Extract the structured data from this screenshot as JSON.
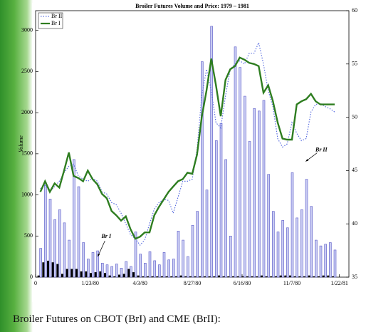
{
  "chart_data": {
    "type": "bar_line",
    "title": "Broiler Futures Volume and Price: 1979 – 1981",
    "y_label": "Volume",
    "caption": "Broiler Futures on CBOT (BrI) and CME (BrII):",
    "x": [
      1,
      2,
      3,
      4,
      5,
      6,
      7,
      8,
      9,
      10,
      11,
      12,
      13,
      14,
      15,
      16,
      17,
      18,
      19,
      20,
      21,
      22,
      23,
      24,
      25,
      26,
      27,
      28,
      29,
      30,
      31,
      32,
      33,
      34,
      35,
      36,
      37,
      38,
      39,
      40,
      41,
      42,
      43,
      44,
      45,
      46,
      47,
      48,
      49,
      50,
      51,
      52,
      53,
      54,
      55,
      56,
      57,
      58,
      59,
      60,
      61,
      62,
      63
    ],
    "xlim": [
      0,
      66
    ],
    "xticks": [
      0,
      {
        "value": 11.5,
        "label": "1/23/80"
      },
      {
        "value": 22,
        "label": "4/3/80"
      },
      {
        "value": 33,
        "label": "8/27/80"
      },
      {
        "value": 43.5,
        "label": "6/16/80"
      },
      {
        "value": 54,
        "label": "11/7/80"
      },
      {
        "value": 64,
        "label": "1/22/81"
      }
    ],
    "ylim": [
      0,
      3240
    ],
    "yticks": [
      0,
      500,
      1000,
      1500,
      2000,
      2500,
      3000
    ],
    "y2lim": [
      35,
      60
    ],
    "y2ticks": [
      35,
      40,
      45,
      50,
      55,
      60
    ],
    "legend": "upper left",
    "series": [
      {
        "kind": "bar",
        "color": "#5a5ac8",
        "values": [
          350,
          1150,
          950,
          700,
          820,
          660,
          450,
          1430,
          1100,
          420,
          220,
          300,
          320,
          170,
          150,
          130,
          160,
          110,
          190,
          130,
          550,
          280,
          170,
          310,
          200,
          150,
          300,
          210,
          220,
          560,
          450,
          250,
          630,
          800,
          2620,
          1060,
          3050,
          1660,
          1870,
          1430,
          500,
          2800,
          2550,
          2200,
          1650,
          2050,
          2020,
          2150,
          1250,
          800,
          550,
          690,
          600,
          1270,
          720,
          820,
          1190,
          860,
          450,
          380,
          400,
          420,
          330
        ]
      },
      {
        "kind": "bar",
        "color": "#000000",
        "values": [
          20,
          180,
          200,
          180,
          160,
          40,
          100,
          100,
          100,
          70,
          70,
          50,
          60,
          70,
          50,
          20,
          10,
          30,
          40,
          100,
          60,
          20,
          10,
          10,
          10,
          10,
          10,
          10,
          10,
          10,
          20,
          10,
          10,
          10,
          10,
          10,
          10,
          10,
          20,
          10,
          10,
          10,
          10,
          10,
          10,
          10,
          10,
          20,
          10,
          10,
          10,
          20,
          20,
          20,
          10,
          10,
          10,
          20,
          10,
          10,
          20,
          20,
          10
        ]
      },
      {
        "kind": "line",
        "name": "Br II",
        "axis": "y2",
        "color": "#5a6ee0",
        "dash": true,
        "values": [
          43.3,
          43.6,
          43.0,
          43.5,
          44.0,
          44.8,
          45.4,
          45.6,
          44.5,
          44.2,
          44.0,
          44.3,
          44.0,
          43.0,
          42.8,
          42.0,
          41.8,
          41.0,
          40.0,
          39.0,
          38.6,
          38.0,
          38.5,
          40.0,
          41.4,
          42.0,
          42.3,
          42.2,
          41.0,
          42.5,
          44.0,
          44.0,
          44.2,
          47.0,
          52.0,
          54.5,
          52.5,
          49.5,
          49.0,
          52.0,
          54.5,
          55.0,
          55.3,
          55.0,
          56.0,
          56.0,
          57.0,
          55.0,
          52.5,
          51.0,
          48.0,
          47.2,
          47.5,
          49.5,
          48.5,
          47.8,
          48.0,
          50.5,
          51.2,
          51.3,
          51.0,
          50.8,
          50.5
        ]
      },
      {
        "kind": "line",
        "name": "Br I",
        "axis": "y2",
        "color": "#2e7d20",
        "dash": false,
        "values": [
          43.0,
          44.0,
          43.0,
          43.8,
          43.4,
          45.0,
          46.7,
          44.5,
          44.3,
          44.0,
          45.0,
          44.2,
          43.7,
          42.8,
          42.4,
          41.2,
          40.8,
          40.3,
          40.7,
          39.5,
          38.6,
          38.8,
          39.2,
          39.2,
          40.8,
          41.6,
          42.3,
          43.0,
          43.5,
          44.0,
          44.2,
          44.8,
          44.7,
          46.5,
          50.0,
          52.5,
          55.5,
          53.0,
          50.1,
          53.5,
          54.5,
          54.8,
          55.6,
          55.4,
          55.1,
          55.0,
          54.8,
          52.3,
          53.0,
          51.5,
          49.5,
          48.0,
          47.9,
          47.9,
          51.2,
          51.5,
          51.7,
          52.2,
          51.5,
          51.2,
          51.2,
          51.2,
          51.2
        ]
      }
    ],
    "annotations": [
      {
        "text": "Br I",
        "x": 14,
        "y": 320
      },
      {
        "text": "Br II",
        "x": 59,
        "y": 1390
      }
    ]
  }
}
